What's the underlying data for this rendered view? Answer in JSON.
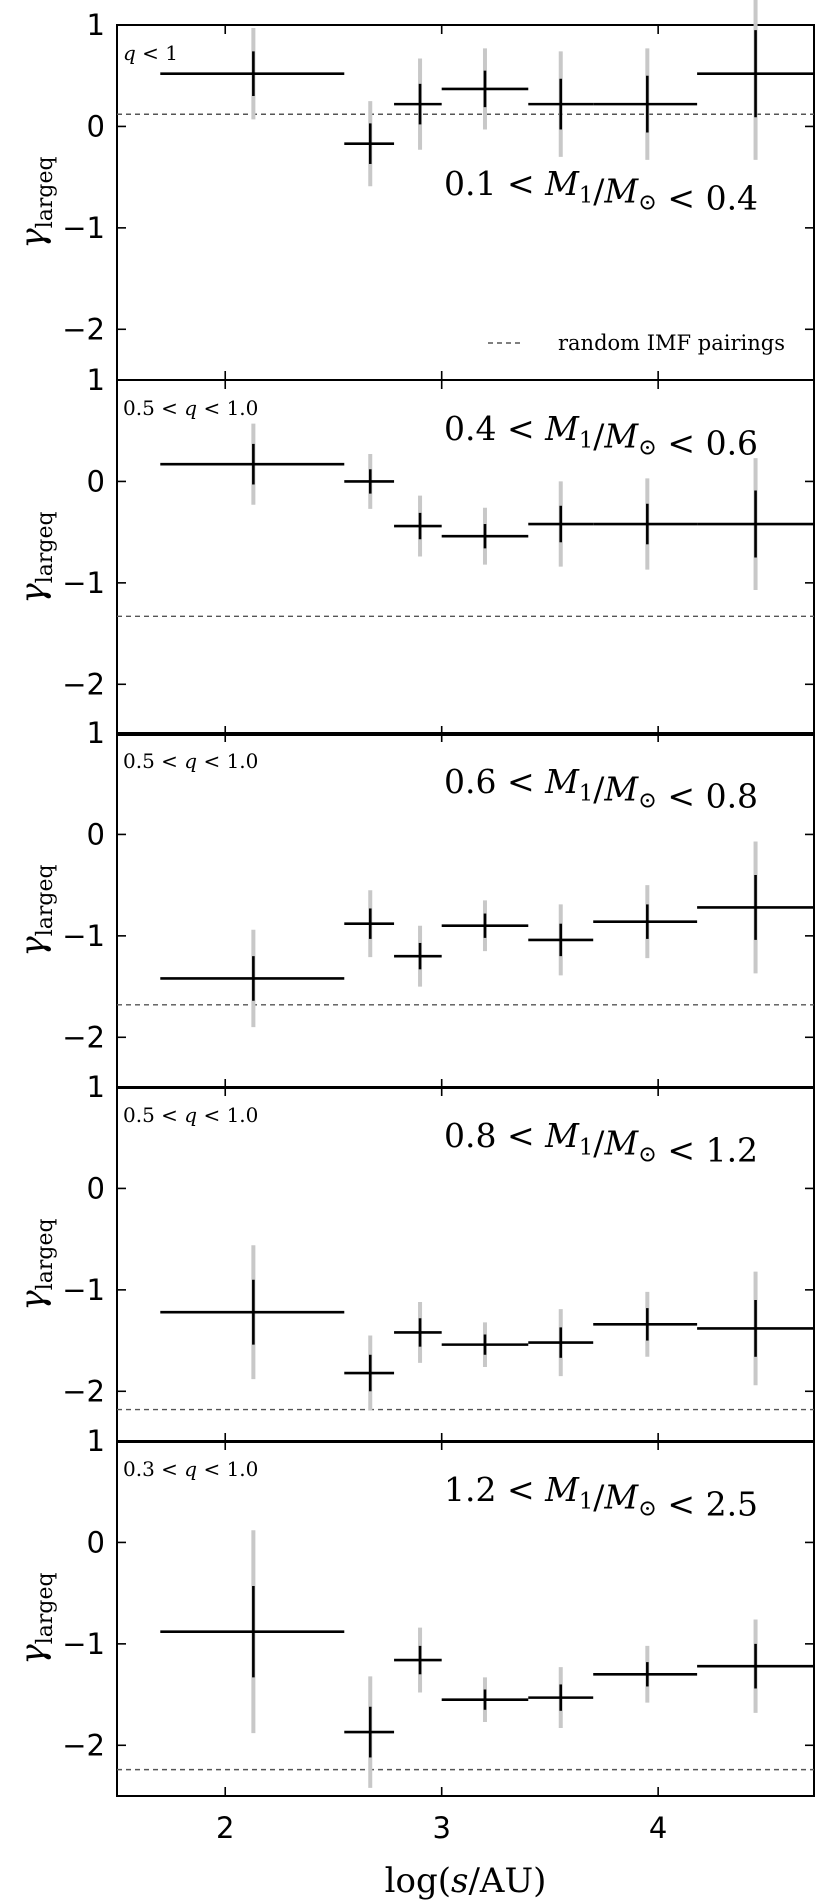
{
  "chart_data": {
    "type": "scatter",
    "style": "errorbar-steps",
    "xlabel": "log(s/AU)",
    "xlim": [
      1.5,
      4.72
    ],
    "xticks": [
      2,
      3,
      4
    ],
    "ylabel": "γlargeq",
    "colors": {
      "points": "#000000",
      "outer_errorbar": "#c8c8c8",
      "reference_line": "#555555"
    },
    "panels": [
      {
        "mass_label": "0.1 < M1/M⊙ < 0.4",
        "q_label": "q < 1",
        "ylim": [
          -2.5,
          1
        ],
        "yticks": [
          1,
          0,
          -1,
          -2
        ],
        "random_imf_level": 0.12,
        "legend": {
          "label": "random IMF pairings",
          "placement": "lower-right"
        },
        "points": [
          {
            "x": 2.13,
            "xlo": 1.7,
            "xhi": 2.55,
            "y": 0.52,
            "err_in": 0.22,
            "err_out": 0.45
          },
          {
            "x": 2.67,
            "xlo": 2.55,
            "xhi": 2.78,
            "y": -0.17,
            "err_in": 0.2,
            "err_out": 0.42
          },
          {
            "x": 2.9,
            "xlo": 2.78,
            "xhi": 3.0,
            "y": 0.22,
            "err_in": 0.2,
            "err_out": 0.45
          },
          {
            "x": 3.2,
            "xlo": 3.0,
            "xhi": 3.4,
            "y": 0.37,
            "err_in": 0.18,
            "err_out": 0.4
          },
          {
            "x": 3.55,
            "xlo": 3.4,
            "xhi": 3.7,
            "y": 0.22,
            "err_in": 0.25,
            "err_out": 0.52
          },
          {
            "x": 3.95,
            "xlo": 3.7,
            "xhi": 4.18,
            "y": 0.22,
            "err_in": 0.28,
            "err_out": 0.55
          },
          {
            "x": 4.45,
            "xlo": 4.18,
            "xhi": 4.72,
            "y": 0.52,
            "err_in": 0.43,
            "err_out": 0.85
          }
        ]
      },
      {
        "mass_label": "0.4 < M1/M⊙ < 0.6",
        "q_label": "0.5 < q < 1.0",
        "ylim": [
          -2.5,
          1
        ],
        "yticks": [
          1,
          0,
          -1,
          -2
        ],
        "random_imf_level": -1.33,
        "points": [
          {
            "x": 2.13,
            "xlo": 1.7,
            "xhi": 2.55,
            "y": 0.17,
            "err_in": 0.2,
            "err_out": 0.4
          },
          {
            "x": 2.67,
            "xlo": 2.55,
            "xhi": 2.78,
            "y": 0.0,
            "err_in": 0.12,
            "err_out": 0.27
          },
          {
            "x": 2.9,
            "xlo": 2.78,
            "xhi": 3.0,
            "y": -0.44,
            "err_in": 0.13,
            "err_out": 0.3
          },
          {
            "x": 3.2,
            "xlo": 3.0,
            "xhi": 3.4,
            "y": -0.54,
            "err_in": 0.12,
            "err_out": 0.28
          },
          {
            "x": 3.55,
            "xlo": 3.4,
            "xhi": 3.7,
            "y": -0.42,
            "err_in": 0.18,
            "err_out": 0.42
          },
          {
            "x": 3.95,
            "xlo": 3.7,
            "xhi": 4.18,
            "y": -0.42,
            "err_in": 0.2,
            "err_out": 0.45
          },
          {
            "x": 4.45,
            "xlo": 4.18,
            "xhi": 4.72,
            "y": -0.42,
            "err_in": 0.33,
            "err_out": 0.65
          }
        ]
      },
      {
        "mass_label": "0.6 < M1/M⊙ < 0.8",
        "q_label": "0.5 < q < 1.0",
        "ylim": [
          -2.5,
          1
        ],
        "yticks": [
          1,
          0,
          -1,
          -2
        ],
        "random_imf_level": -1.68,
        "points": [
          {
            "x": 2.13,
            "xlo": 1.7,
            "xhi": 2.55,
            "y": -1.42,
            "err_in": 0.22,
            "err_out": 0.48
          },
          {
            "x": 2.67,
            "xlo": 2.55,
            "xhi": 2.78,
            "y": -0.88,
            "err_in": 0.15,
            "err_out": 0.33
          },
          {
            "x": 2.9,
            "xlo": 2.78,
            "xhi": 3.0,
            "y": -1.2,
            "err_in": 0.13,
            "err_out": 0.3
          },
          {
            "x": 3.2,
            "xlo": 3.0,
            "xhi": 3.4,
            "y": -0.9,
            "err_in": 0.12,
            "err_out": 0.25
          },
          {
            "x": 3.55,
            "xlo": 3.4,
            "xhi": 3.7,
            "y": -1.04,
            "err_in": 0.16,
            "err_out": 0.35
          },
          {
            "x": 3.95,
            "xlo": 3.7,
            "xhi": 4.18,
            "y": -0.86,
            "err_in": 0.17,
            "err_out": 0.36
          },
          {
            "x": 4.45,
            "xlo": 4.18,
            "xhi": 4.72,
            "y": -0.72,
            "err_in": 0.32,
            "err_out": 0.65
          }
        ]
      },
      {
        "mass_label": "0.8 < M1/M⊙ < 1.2",
        "q_label": "0.5 < q < 1.0",
        "ylim": [
          -2.5,
          1
        ],
        "yticks": [
          1,
          0,
          -1,
          -2
        ],
        "random_imf_level": -2.18,
        "points": [
          {
            "x": 2.13,
            "xlo": 1.7,
            "xhi": 2.55,
            "y": -1.22,
            "err_in": 0.32,
            "err_out": 0.66
          },
          {
            "x": 2.67,
            "xlo": 2.55,
            "xhi": 2.78,
            "y": -1.82,
            "err_in": 0.18,
            "err_out": 0.37
          },
          {
            "x": 2.9,
            "xlo": 2.78,
            "xhi": 3.0,
            "y": -1.42,
            "err_in": 0.14,
            "err_out": 0.3
          },
          {
            "x": 3.2,
            "xlo": 3.0,
            "xhi": 3.4,
            "y": -1.54,
            "err_in": 0.1,
            "err_out": 0.22
          },
          {
            "x": 3.55,
            "xlo": 3.4,
            "xhi": 3.7,
            "y": -1.52,
            "err_in": 0.15,
            "err_out": 0.33
          },
          {
            "x": 3.95,
            "xlo": 3.7,
            "xhi": 4.18,
            "y": -1.34,
            "err_in": 0.16,
            "err_out": 0.32
          },
          {
            "x": 4.45,
            "xlo": 4.18,
            "xhi": 4.72,
            "y": -1.38,
            "err_in": 0.28,
            "err_out": 0.56
          }
        ]
      },
      {
        "mass_label": "1.2 < M1/M⊙ < 2.5",
        "q_label": "0.3 < q < 1.0",
        "ylim": [
          -2.5,
          1
        ],
        "yticks": [
          1,
          0,
          -1,
          -2
        ],
        "random_imf_level": -2.24,
        "points": [
          {
            "x": 2.13,
            "xlo": 1.7,
            "xhi": 2.55,
            "y": -0.88,
            "err_in": 0.45,
            "err_out": 1.0
          },
          {
            "x": 2.67,
            "xlo": 2.55,
            "xhi": 2.78,
            "y": -1.87,
            "err_in": 0.25,
            "err_out": 0.55
          },
          {
            "x": 2.9,
            "xlo": 2.78,
            "xhi": 3.0,
            "y": -1.16,
            "err_in": 0.14,
            "err_out": 0.32
          },
          {
            "x": 3.2,
            "xlo": 3.0,
            "xhi": 3.4,
            "y": -1.55,
            "err_in": 0.1,
            "err_out": 0.22
          },
          {
            "x": 3.55,
            "xlo": 3.4,
            "xhi": 3.7,
            "y": -1.53,
            "err_in": 0.13,
            "err_out": 0.3
          },
          {
            "x": 3.95,
            "xlo": 3.7,
            "xhi": 4.18,
            "y": -1.3,
            "err_in": 0.12,
            "err_out": 0.28
          },
          {
            "x": 4.45,
            "xlo": 4.18,
            "xhi": 4.72,
            "y": -1.22,
            "err_in": 0.22,
            "err_out": 0.46
          }
        ]
      }
    ]
  }
}
